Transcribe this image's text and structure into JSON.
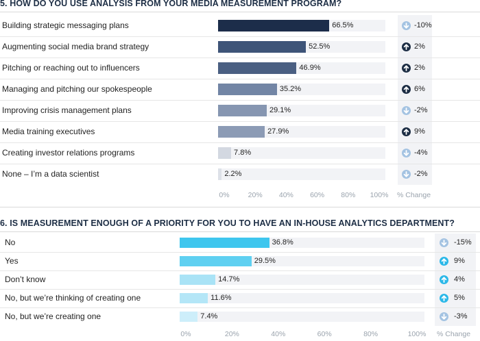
{
  "chart_data": [
    {
      "type": "bar",
      "title": "5. HOW DO YOU USE ANALYSIS FROM YOUR MEDIA MEASUREMENT PROGRAM?",
      "categories": [
        "Building strategic messaging plans",
        "Augmenting social media brand strategy",
        "Pitching or reaching out to influencers",
        "Managing and pitching our spokespeople",
        "Improving crisis management plans",
        "Media training executives",
        "Creating investor relations programs",
        "None – I’m a data scientist"
      ],
      "values": [
        66.5,
        52.5,
        46.9,
        35.2,
        29.1,
        27.9,
        7.8,
        2.2
      ],
      "value_labels": [
        "66.5%",
        "52.5%",
        "46.9%",
        "35.2%",
        "29.1%",
        "27.9%",
        "7.8%",
        "2.2%"
      ],
      "bar_colors": [
        "#1c2d4a",
        "#3e5478",
        "#4a5f82",
        "#7285a5",
        "#8696b1",
        "#8c9bb5",
        "#d3d8e1",
        "#dde1e8"
      ],
      "change_header": "% Change",
      "changes": [
        {
          "text": "-10%",
          "direction": "down",
          "color": "#a4c3e2"
        },
        {
          "text": "2%",
          "direction": "up",
          "color": "#1c2d44"
        },
        {
          "text": "2%",
          "direction": "up",
          "color": "#1c2d44"
        },
        {
          "text": "6%",
          "direction": "up",
          "color": "#1c2d44"
        },
        {
          "text": "-2%",
          "direction": "down",
          "color": "#a4c3e2"
        },
        {
          "text": "9%",
          "direction": "up",
          "color": "#1c2d44"
        },
        {
          "text": "-4%",
          "direction": "down",
          "color": "#a4c3e2"
        },
        {
          "text": "-2%",
          "direction": "down",
          "color": "#a4c3e2"
        }
      ],
      "xlim": [
        0,
        100
      ],
      "xticks": [
        "0%",
        "20%",
        "40%",
        "60%",
        "80%",
        "100%"
      ]
    },
    {
      "type": "bar",
      "title": "6. IS MEASUREMENT ENOUGH OF A PRIORITY FOR YOU TO HAVE AN IN-HOUSE ANALYTICS DEPARTMENT?",
      "categories": [
        "No",
        "Yes",
        "Don’t know",
        "No, but we’re thinking of creating one",
        "No, but we’re creating one"
      ],
      "values": [
        36.8,
        29.5,
        14.7,
        11.6,
        7.4
      ],
      "value_labels": [
        "36.8%",
        "29.5%",
        "14.7%",
        "11.6%",
        "7.4%"
      ],
      "bar_colors": [
        "#3ec6ee",
        "#5fd0f1",
        "#a9e3f6",
        "#b4e6f7",
        "#cdeefa"
      ],
      "change_header": "% Change",
      "changes": [
        {
          "text": "-15%",
          "direction": "down",
          "color": "#a4c3e2"
        },
        {
          "text": "9%",
          "direction": "up",
          "color": "#2bb8e8"
        },
        {
          "text": "4%",
          "direction": "up",
          "color": "#2bb8e8"
        },
        {
          "text": "5%",
          "direction": "up",
          "color": "#2bb8e8"
        },
        {
          "text": "-3%",
          "direction": "down",
          "color": "#a4c3e2"
        }
      ],
      "xlim": [
        0,
        100
      ],
      "xticks": [
        "0%",
        "20%",
        "40%",
        "60%",
        "80%",
        "100%"
      ]
    }
  ]
}
